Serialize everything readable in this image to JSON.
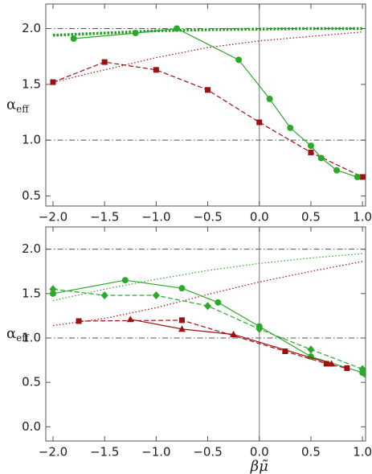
{
  "chart_data": [
    {
      "type": "line",
      "y_label": {
        "symbol": "α",
        "subscript": "eff"
      },
      "xlim": [
        -2.07,
        1.03
      ],
      "ylim": [
        0.41,
        2.22
      ],
      "xticks": [
        {
          "value": -2.0,
          "label": "−2.0"
        },
        {
          "value": -1.5,
          "label": "−1.5"
        },
        {
          "value": -1.0,
          "label": "−1.0"
        },
        {
          "value": -0.5,
          "label": "−0.5"
        },
        {
          "value": 0.0,
          "label": "0.0"
        },
        {
          "value": 0.5,
          "label": "0.5"
        },
        {
          "value": 1.0,
          "label": "1.0"
        }
      ],
      "yticks": [
        {
          "value": 0.5,
          "label": "0.5"
        },
        {
          "value": 1.0,
          "label": "1.0"
        },
        {
          "value": 1.5,
          "label": "1.5"
        },
        {
          "value": 2.0,
          "label": "2.0"
        }
      ],
      "hlines": [
        2.0,
        1.0
      ],
      "vlines": [
        0.0
      ],
      "series": [
        {
          "color": "#1f9e1f",
          "style": "thick-dotted",
          "marker": "none",
          "x": [
            -2.0,
            -1.5,
            -1.0,
            -0.5,
            0.0,
            0.5,
            1.0
          ],
          "values": [
            1.94,
            1.96,
            1.98,
            1.99,
            1.995,
            2.0,
            2.0
          ]
        },
        {
          "color": "#a01010",
          "style": "dotted",
          "marker": "none",
          "x": [
            -2.0,
            -1.5,
            -1.0,
            -0.5,
            0.0,
            0.5,
            1.0
          ],
          "values": [
            1.52,
            1.63,
            1.74,
            1.83,
            1.89,
            1.93,
            1.97
          ]
        },
        {
          "color": "#a01010",
          "style": "dashed",
          "marker": "square",
          "x": [
            -2.0,
            -1.5,
            -1.0,
            -0.5,
            0.0,
            0.5,
            1.0
          ],
          "values": [
            1.52,
            1.7,
            1.63,
            1.45,
            1.16,
            0.89,
            0.67
          ]
        },
        {
          "color": "#2aaa2a",
          "style": "solid",
          "marker": "circle",
          "x": [
            -1.8,
            -1.2,
            -0.8,
            -0.2,
            0.1,
            0.3,
            0.5,
            0.6,
            0.75,
            0.95
          ],
          "values": [
            1.91,
            1.96,
            2.0,
            1.72,
            1.37,
            1.11,
            0.95,
            0.84,
            0.73,
            0.67
          ]
        }
      ]
    },
    {
      "type": "line",
      "y_label": {
        "symbol": "α",
        "subscript": "eff"
      },
      "x_label": "βμ̃",
      "xlim": [
        -2.07,
        1.03
      ],
      "ylim": [
        -0.16,
        2.25
      ],
      "xticks": [
        {
          "value": -2.0,
          "label": "−2.0"
        },
        {
          "value": -1.5,
          "label": "−1.5"
        },
        {
          "value": -1.0,
          "label": "−1.0"
        },
        {
          "value": -0.5,
          "label": "−0.5"
        },
        {
          "value": 0.0,
          "label": "0.0"
        },
        {
          "value": 0.5,
          "label": "0.5"
        },
        {
          "value": 1.0,
          "label": "1.0"
        }
      ],
      "yticks": [
        {
          "value": 0.0,
          "label": "0.0"
        },
        {
          "value": 0.5,
          "label": "0.5"
        },
        {
          "value": 1.0,
          "label": "1.0"
        },
        {
          "value": 1.5,
          "label": "1.5"
        },
        {
          "value": 2.0,
          "label": "2.0"
        }
      ],
      "hlines": [
        2.0,
        1.0
      ],
      "vlines": [
        0.0
      ],
      "series": [
        {
          "color": "#2aaa2a",
          "style": "dotted",
          "marker": "none",
          "x": [
            -2.0,
            -1.5,
            -1.0,
            -0.5,
            0.0,
            0.5,
            1.0
          ],
          "values": [
            1.42,
            1.55,
            1.66,
            1.76,
            1.84,
            1.9,
            1.95
          ]
        },
        {
          "color": "#a01010",
          "style": "dotted",
          "marker": "none",
          "x": [
            -2.0,
            -1.5,
            -1.0,
            -0.5,
            0.0,
            0.5,
            1.0
          ],
          "values": [
            1.14,
            1.22,
            1.34,
            1.49,
            1.63,
            1.75,
            1.86
          ]
        },
        {
          "color": "#2aaa2a",
          "style": "solid",
          "marker": "circle",
          "x": [
            -2.0,
            -1.3,
            -0.75,
            -0.4,
            0.0,
            0.5,
            1.0,
            1.03
          ],
          "values": [
            1.5,
            1.65,
            1.56,
            1.4,
            1.13,
            0.79,
            0.61,
            0.59
          ]
        },
        {
          "color": "#2aaa2a",
          "style": "dashed",
          "marker": "diamond",
          "x": [
            -2.0,
            -1.5,
            -1.0,
            -0.5,
            0.0,
            0.5,
            1.0
          ],
          "values": [
            1.55,
            1.48,
            1.48,
            1.36,
            1.1,
            0.87,
            0.65
          ]
        },
        {
          "color": "#a01010",
          "style": "dashed",
          "marker": "square",
          "x": [
            -1.75,
            -0.75,
            0.25,
            0.65,
            0.85
          ],
          "values": [
            1.19,
            1.2,
            0.85,
            0.71,
            0.66
          ]
        },
        {
          "color": "#a01010",
          "style": "solid",
          "marker": "triangle",
          "x": [
            -1.25,
            -0.75,
            -0.25,
            0.7
          ],
          "values": [
            1.21,
            1.1,
            1.04,
            0.71
          ]
        }
      ]
    }
  ]
}
